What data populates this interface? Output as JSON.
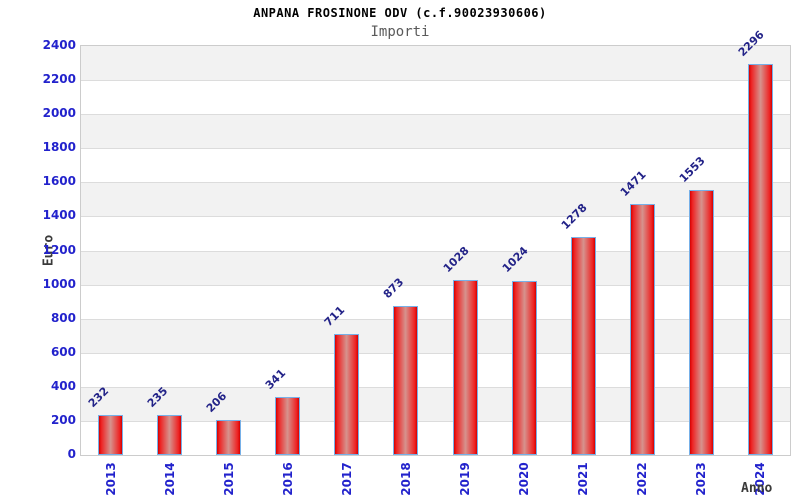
{
  "chart_data": {
    "type": "bar",
    "title": "ANPANA FROSINONE ODV (c.f.90023930606)",
    "subtitle": "Importi",
    "xlabel": "Anno",
    "ylabel": "Euro",
    "categories": [
      "2013",
      "2014",
      "2015",
      "2016",
      "2017",
      "2018",
      "2019",
      "2020",
      "2021",
      "2022",
      "2023",
      "2024"
    ],
    "values": [
      232,
      235,
      206,
      341,
      711,
      873,
      1028,
      1024,
      1278,
      1471,
      1553,
      2296
    ],
    "ylim": [
      0,
      2400
    ],
    "ytick_step": 200,
    "yticks": [
      0,
      200,
      400,
      600,
      800,
      1000,
      1200,
      1400,
      1600,
      1800,
      2000,
      2200,
      2400
    ],
    "grid": true,
    "legend_position": "none",
    "colors": {
      "band_gray": "#f2f2f2",
      "band_white": "#ffffff",
      "gridline": "#dcdcdc",
      "frame": "#cccccc",
      "bar_edge": "#d40000",
      "bar_body": "#ee2222",
      "bar_center": "#d6938e",
      "bar_border": "#76b0e8",
      "tick_label": "#2222cc",
      "value_label": "#232388",
      "axis_title": "#3a3a3a",
      "title": "#000000",
      "subtitle": "#5a5a5a"
    }
  }
}
